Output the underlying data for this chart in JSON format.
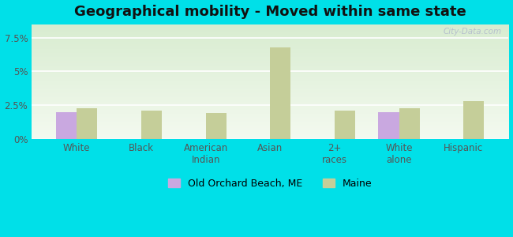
{
  "title": "Geographical mobility - Moved within same state",
  "categories": [
    "White",
    "Black",
    "American\nIndian",
    "Asian",
    "2+\nraces",
    "White\nalone",
    "Hispanic"
  ],
  "oob_values": [
    2.0,
    0.0,
    0.0,
    0.0,
    0.0,
    2.0,
    0.0
  ],
  "maine_values": [
    2.3,
    2.1,
    1.9,
    6.8,
    2.1,
    2.3,
    2.8
  ],
  "oob_color": "#c9a8e0",
  "maine_color": "#c5ce99",
  "outer_bg": "#00e0e8",
  "plot_bg_light": "#f4faf0",
  "plot_bg_dark": "#d8ecd0",
  "ylim": [
    0,
    8.5
  ],
  "yticks": [
    0,
    2.5,
    5.0,
    7.5
  ],
  "ytick_labels": [
    "0%",
    "2.5%",
    "5%",
    "7.5%"
  ],
  "bar_width": 0.32,
  "legend_label_oob": "Old Orchard Beach, ME",
  "legend_label_maine": "Maine",
  "title_fontsize": 13,
  "tick_fontsize": 8.5,
  "legend_fontsize": 9
}
